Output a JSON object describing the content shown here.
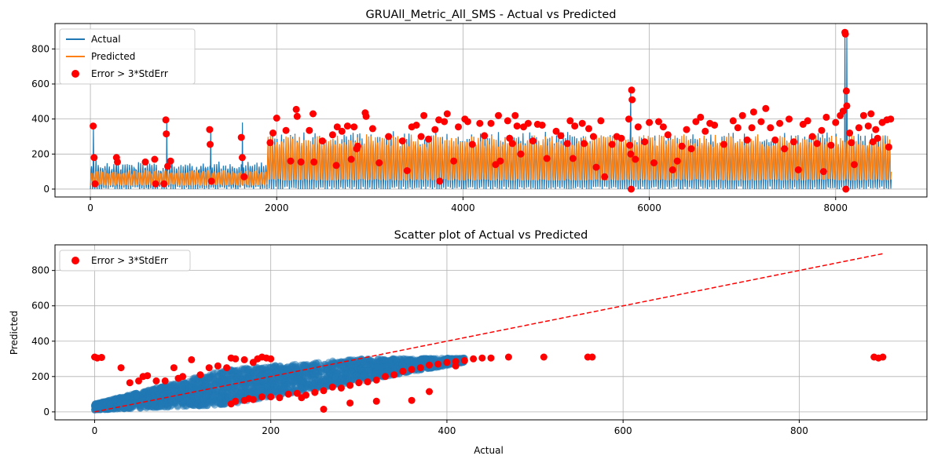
{
  "colors": {
    "actual": "#1f77b4",
    "predicted": "#ff7f0e",
    "error": "#ff0000",
    "grid": "#b0b0b0",
    "identity": "#ff0000"
  },
  "chart_data": [
    {
      "type": "line",
      "title": "GRUAll_Metric_All_SMS - Actual vs Predicted",
      "xlabel": "",
      "ylabel": "",
      "xlim": [
        -380,
        8980
      ],
      "ylim": [
        -45,
        945
      ],
      "xticks": [
        0,
        2000,
        4000,
        6000,
        8000
      ],
      "yticks": [
        0,
        200,
        400,
        600,
        800
      ],
      "grid": true,
      "legend_position": "top-left",
      "n_points": 8600,
      "series": [
        {
          "name": "Actual",
          "kind": "line",
          "segments": [
            {
              "x_from": 0,
              "x_to": 1900,
              "min": 0,
              "max": 150,
              "period_points": 24
            },
            {
              "x_from": 1900,
              "x_to": 8600,
              "min": 0,
              "max": 320,
              "period_points": 24
            }
          ],
          "spikes": [
            [
              30,
              360
            ],
            [
              60,
              180
            ],
            [
              280,
              180
            ],
            [
              820,
              390
            ],
            [
              1290,
              340
            ],
            [
              1630,
              380
            ],
            [
              5800,
              560
            ],
            [
              8100,
              890
            ],
            [
              8120,
              870
            ]
          ]
        },
        {
          "name": "Predicted",
          "kind": "line",
          "segments": [
            {
              "x_from": 0,
              "x_to": 1900,
              "min": 20,
              "max": 110,
              "period_points": 24
            },
            {
              "x_from": 1900,
              "x_to": 8600,
              "min": 50,
              "max": 310,
              "period_points": 24
            }
          ]
        },
        {
          "name": "Error > 3*StdErr",
          "kind": "scatter",
          "points": [
            [
              30,
              360
            ],
            [
              40,
              180
            ],
            [
              50,
              30
            ],
            [
              280,
              180
            ],
            [
              290,
              155
            ],
            [
              590,
              155
            ],
            [
              690,
              170
            ],
            [
              700,
              30
            ],
            [
              790,
              30
            ],
            [
              810,
              395
            ],
            [
              815,
              315
            ],
            [
              830,
              130
            ],
            [
              860,
              160
            ],
            [
              1280,
              340
            ],
            [
              1285,
              255
            ],
            [
              1300,
              45
            ],
            [
              1620,
              295
            ],
            [
              1630,
              180
            ],
            [
              1650,
              70
            ],
            [
              1930,
              265
            ],
            [
              1960,
              320
            ],
            [
              2000,
              405
            ],
            [
              2100,
              335
            ],
            [
              2150,
              160
            ],
            [
              2210,
              455
            ],
            [
              2220,
              415
            ],
            [
              2260,
              155
            ],
            [
              2350,
              335
            ],
            [
              2390,
              430
            ],
            [
              2400,
              155
            ],
            [
              2490,
              275
            ],
            [
              2600,
              310
            ],
            [
              2640,
              135
            ],
            [
              2650,
              355
            ],
            [
              2700,
              330
            ],
            [
              2760,
              360
            ],
            [
              2800,
              170
            ],
            [
              2830,
              355
            ],
            [
              2860,
              230
            ],
            [
              2870,
              245
            ],
            [
              2950,
              435
            ],
            [
              2960,
              415
            ],
            [
              3030,
              345
            ],
            [
              3100,
              150
            ],
            [
              3200,
              300
            ],
            [
              3350,
              275
            ],
            [
              3400,
              105
            ],
            [
              3450,
              355
            ],
            [
              3500,
              365
            ],
            [
              3550,
              300
            ],
            [
              3580,
              420
            ],
            [
              3630,
              285
            ],
            [
              3700,
              340
            ],
            [
              3740,
              395
            ],
            [
              3750,
              45
            ],
            [
              3800,
              385
            ],
            [
              3830,
              430
            ],
            [
              3900,
              160
            ],
            [
              3950,
              355
            ],
            [
              4020,
              400
            ],
            [
              4050,
              385
            ],
            [
              4100,
              255
            ],
            [
              4180,
              375
            ],
            [
              4230,
              305
            ],
            [
              4300,
              375
            ],
            [
              4350,
              140
            ],
            [
              4380,
              420
            ],
            [
              4400,
              160
            ],
            [
              4480,
              390
            ],
            [
              4500,
              290
            ],
            [
              4530,
              260
            ],
            [
              4560,
              420
            ],
            [
              4580,
              360
            ],
            [
              4620,
              200
            ],
            [
              4650,
              355
            ],
            [
              4700,
              375
            ],
            [
              4750,
              275
            ],
            [
              4800,
              370
            ],
            [
              4850,
              365
            ],
            [
              4900,
              175
            ],
            [
              5000,
              330
            ],
            [
              5050,
              305
            ],
            [
              5120,
              260
            ],
            [
              5150,
              390
            ],
            [
              5180,
              175
            ],
            [
              5200,
              360
            ],
            [
              5280,
              375
            ],
            [
              5300,
              260
            ],
            [
              5350,
              345
            ],
            [
              5400,
              300
            ],
            [
              5430,
              125
            ],
            [
              5480,
              390
            ],
            [
              5520,
              70
            ],
            [
              5600,
              255
            ],
            [
              5650,
              300
            ],
            [
              5700,
              290
            ],
            [
              5780,
              400
            ],
            [
              5790,
              250
            ],
            [
              5800,
              200
            ],
            [
              5805,
              0
            ],
            [
              5810,
              565
            ],
            [
              5815,
              510
            ],
            [
              5850,
              170
            ],
            [
              5880,
              355
            ],
            [
              5950,
              270
            ],
            [
              6000,
              380
            ],
            [
              6050,
              150
            ],
            [
              6100,
              385
            ],
            [
              6150,
              355
            ],
            [
              6200,
              310
            ],
            [
              6250,
              110
            ],
            [
              6300,
              160
            ],
            [
              6350,
              245
            ],
            [
              6400,
              340
            ],
            [
              6450,
              230
            ],
            [
              6500,
              385
            ],
            [
              6550,
              410
            ],
            [
              6600,
              330
            ],
            [
              6650,
              375
            ],
            [
              6700,
              365
            ],
            [
              6800,
              255
            ],
            [
              6900,
              390
            ],
            [
              6950,
              350
            ],
            [
              7000,
              420
            ],
            [
              7050,
              280
            ],
            [
              7100,
              350
            ],
            [
              7120,
              440
            ],
            [
              7200,
              385
            ],
            [
              7250,
              460
            ],
            [
              7300,
              350
            ],
            [
              7350,
              280
            ],
            [
              7400,
              375
            ],
            [
              7450,
              230
            ],
            [
              7500,
              400
            ],
            [
              7550,
              270
            ],
            [
              7600,
              110
            ],
            [
              7650,
              370
            ],
            [
              7700,
              390
            ],
            [
              7750,
              300
            ],
            [
              7800,
              260
            ],
            [
              7850,
              335
            ],
            [
              7870,
              100
            ],
            [
              7900,
              410
            ],
            [
              7950,
              250
            ],
            [
              8000,
              380
            ],
            [
              8050,
              420
            ],
            [
              8080,
              445
            ],
            [
              8100,
              895
            ],
            [
              8105,
              885
            ],
            [
              8110,
              0
            ],
            [
              8115,
              560
            ],
            [
              8120,
              475
            ],
            [
              8150,
              320
            ],
            [
              8170,
              265
            ],
            [
              8200,
              140
            ],
            [
              8250,
              350
            ],
            [
              8300,
              420
            ],
            [
              8350,
              360
            ],
            [
              8380,
              430
            ],
            [
              8400,
              270
            ],
            [
              8430,
              340
            ],
            [
              8450,
              290
            ],
            [
              8500,
              380
            ],
            [
              8550,
              395
            ],
            [
              8570,
              240
            ],
            [
              8590,
              400
            ]
          ]
        }
      ]
    },
    {
      "type": "scatter",
      "title": "Scatter plot of Actual vs Predicted",
      "xlabel": "Actual",
      "ylabel": "Predicted",
      "xlim": [
        -45,
        945
      ],
      "ylim": [
        -45,
        945
      ],
      "xticks": [
        0,
        200,
        400,
        600,
        800
      ],
      "yticks": [
        0,
        200,
        400,
        600,
        800
      ],
      "grid": true,
      "legend_position": "top-left",
      "identity_line": [
        [
          0,
          0
        ],
        [
          895,
          895
        ]
      ],
      "series": [
        {
          "name": "",
          "kind": "scatter",
          "alpha": 0.5,
          "band": {
            "x_from": 0,
            "x_to": 420,
            "lower": [
              [
                0,
                10
              ],
              [
                150,
                40
              ],
              [
                420,
                280
              ]
            ],
            "upper": [
              [
                0,
                45
              ],
              [
                150,
                240
              ],
              [
                300,
                300
              ],
              [
                420,
                305
              ]
            ],
            "count": 3000
          }
        },
        {
          "name": "Error > 3*StdErr",
          "kind": "scatter",
          "points": [
            [
              0,
              310
            ],
            [
              3,
              305
            ],
            [
              8,
              308
            ],
            [
              30,
              250
            ],
            [
              40,
              165
            ],
            [
              50,
              175
            ],
            [
              55,
              200
            ],
            [
              60,
              205
            ],
            [
              70,
              175
            ],
            [
              80,
              175
            ],
            [
              90,
              250
            ],
            [
              95,
              190
            ],
            [
              100,
              200
            ],
            [
              110,
              295
            ],
            [
              120,
              210
            ],
            [
              130,
              250
            ],
            [
              140,
              260
            ],
            [
              150,
              250
            ],
            [
              155,
              305
            ],
            [
              160,
              300
            ],
            [
              170,
              295
            ],
            [
              180,
              280
            ],
            [
              185,
              300
            ],
            [
              190,
              310
            ],
            [
              195,
              305
            ],
            [
              200,
              300
            ],
            [
              155,
              45
            ],
            [
              160,
              60
            ],
            [
              170,
              65
            ],
            [
              175,
              75
            ],
            [
              180,
              70
            ],
            [
              190,
              85
            ],
            [
              200,
              85
            ],
            [
              210,
              80
            ],
            [
              220,
              100
            ],
            [
              230,
              105
            ],
            [
              240,
              95
            ],
            [
              250,
              110
            ],
            [
              260,
              120
            ],
            [
              270,
              140
            ],
            [
              280,
              135
            ],
            [
              290,
              150
            ],
            [
              300,
              165
            ],
            [
              310,
              170
            ],
            [
              320,
              180
            ],
            [
              330,
              200
            ],
            [
              340,
              210
            ],
            [
              350,
              230
            ],
            [
              360,
              240
            ],
            [
              370,
              250
            ],
            [
              380,
              265
            ],
            [
              390,
              270
            ],
            [
              400,
              280
            ],
            [
              410,
              285
            ],
            [
              420,
              290
            ],
            [
              430,
              300
            ],
            [
              440,
              305
            ],
            [
              450,
              305
            ],
            [
              235,
              80
            ],
            [
              260,
              15
            ],
            [
              290,
              50
            ],
            [
              320,
              60
            ],
            [
              360,
              65
            ],
            [
              380,
              115
            ],
            [
              410,
              260
            ],
            [
              470,
              310
            ],
            [
              510,
              310
            ],
            [
              560,
              310
            ],
            [
              565,
              310
            ],
            [
              885,
              310
            ],
            [
              890,
              305
            ],
            [
              895,
              310
            ]
          ]
        }
      ]
    }
  ]
}
